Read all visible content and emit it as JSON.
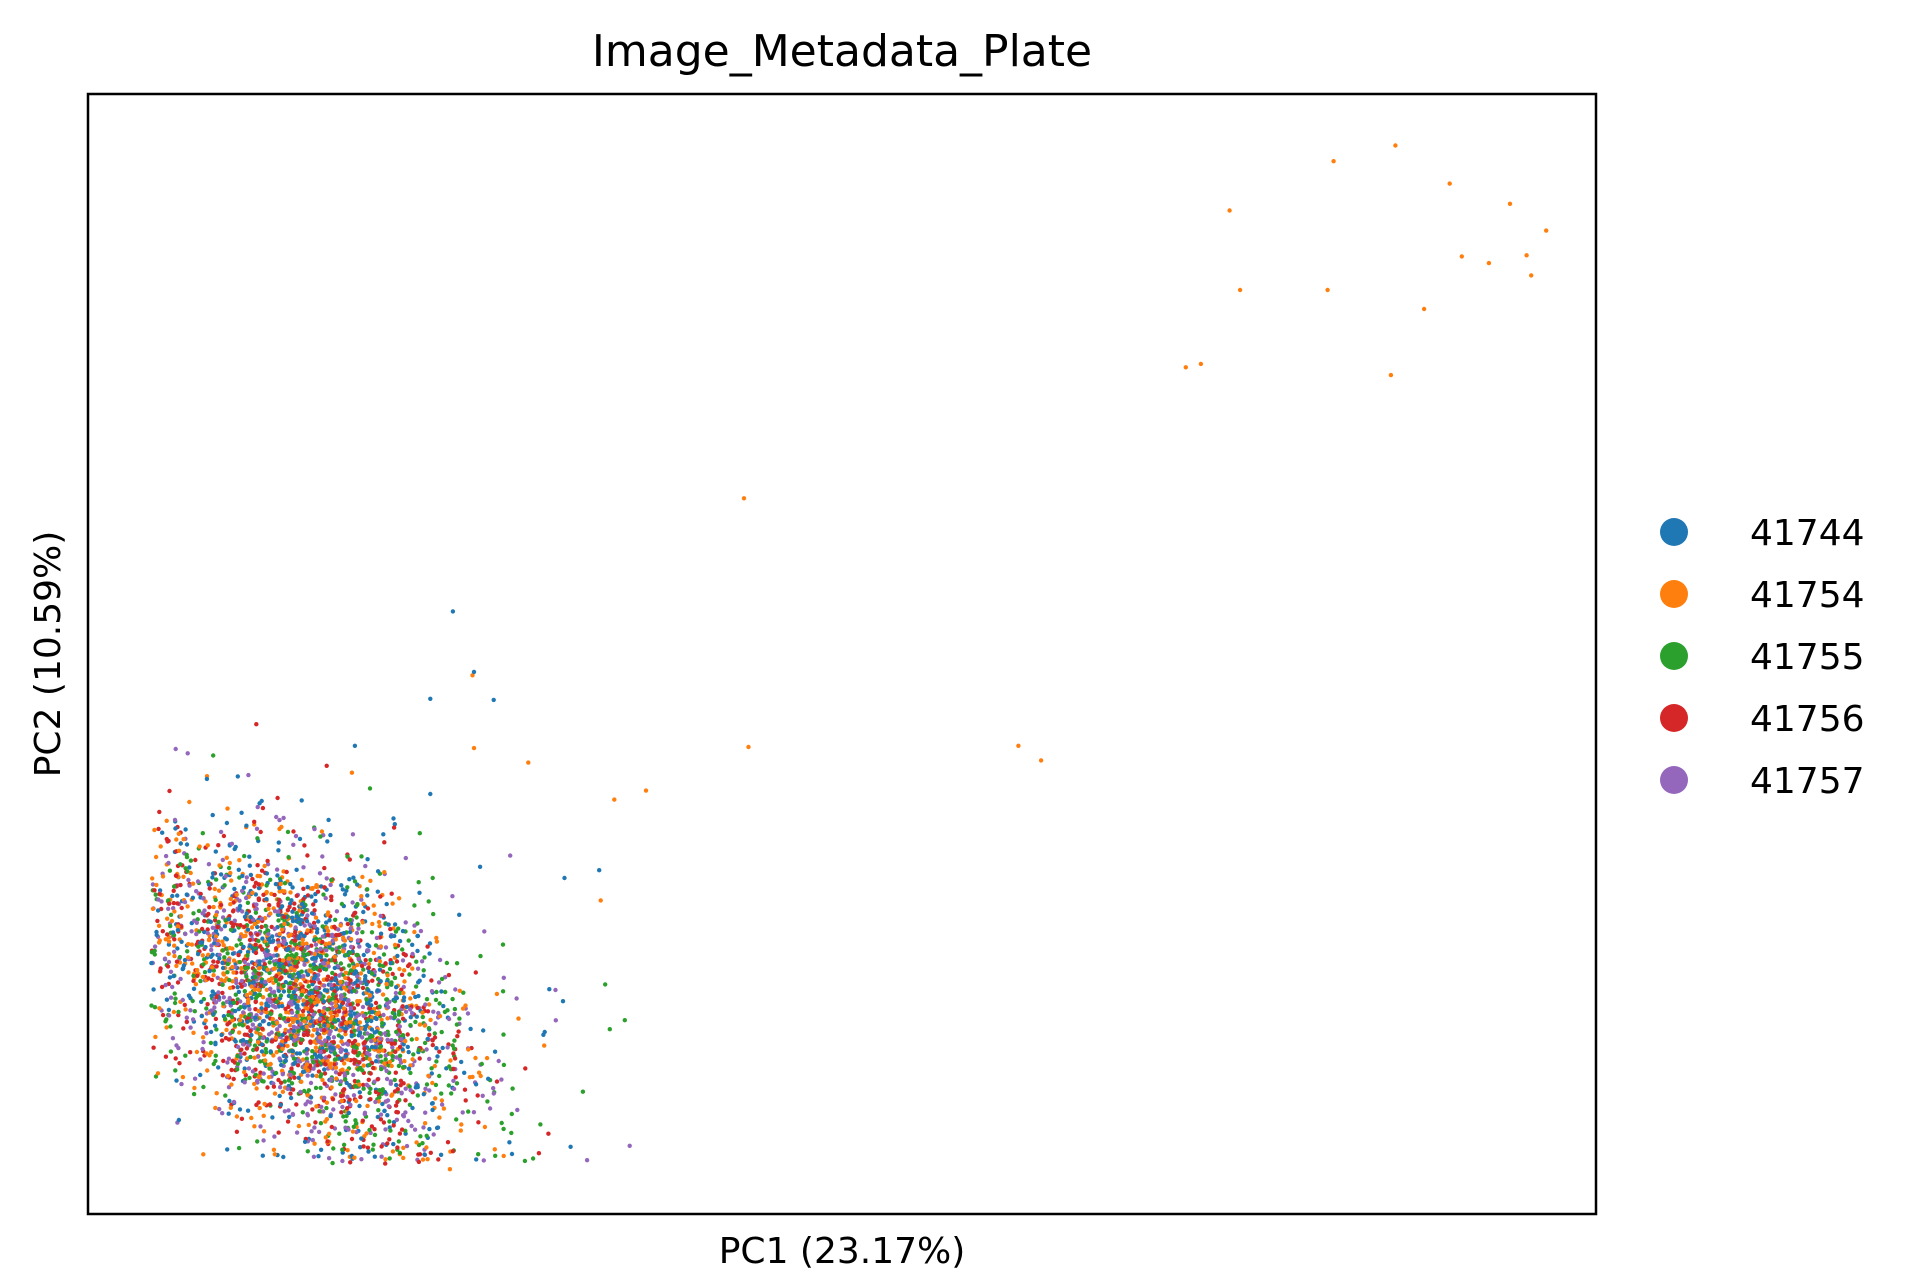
{
  "chart_data": {
    "type": "scatter",
    "title": "Image_Metadata_Plate",
    "xlabel": "PC1 (23.17%)",
    "ylabel": "PC2 (10.59%)",
    "xlim": [
      0,
      100
    ],
    "ylim": [
      0,
      100
    ],
    "grid": false,
    "ticks": false,
    "legend_placement": "right",
    "series": [
      {
        "name": "41744",
        "color": "#1f77b4",
        "cluster": {
          "count": 700,
          "center": [
            14.5,
            20.0
          ],
          "spread": [
            5.0,
            6.0
          ]
        },
        "points": [
          [
            24.2,
            53.8
          ],
          [
            25.6,
            48.4
          ],
          [
            26.9,
            45.9
          ],
          [
            22.7,
            46.0
          ],
          [
            17.7,
            41.8
          ],
          [
            22.7,
            37.5
          ],
          [
            33.9,
            30.7
          ],
          [
            31.6,
            30.0
          ],
          [
            26.0,
            31.0
          ],
          [
            31.5,
            19.0
          ],
          [
            30.2,
            16.0
          ],
          [
            32.0,
            6.0
          ]
        ]
      },
      {
        "name": "41754",
        "color": "#ff7f0e",
        "cluster": {
          "count": 700,
          "center": [
            14.0,
            19.5
          ],
          "spread": [
            5.0,
            6.0
          ]
        },
        "points": [
          [
            94.3,
            90.2
          ],
          [
            90.3,
            92.0
          ],
          [
            86.7,
            95.4
          ],
          [
            82.6,
            94.0
          ],
          [
            75.7,
            89.6
          ],
          [
            91.1,
            85.5
          ],
          [
            92.9,
            84.9
          ],
          [
            95.7,
            83.8
          ],
          [
            96.7,
            87.8
          ],
          [
            95.4,
            85.6
          ],
          [
            88.6,
            80.8
          ],
          [
            82.2,
            82.5
          ],
          [
            76.4,
            82.5
          ],
          [
            73.8,
            75.9
          ],
          [
            72.8,
            75.6
          ],
          [
            86.4,
            74.9
          ],
          [
            43.5,
            63.9
          ],
          [
            43.8,
            41.7
          ],
          [
            61.7,
            41.8
          ],
          [
            63.2,
            40.5
          ],
          [
            25.5,
            48.1
          ],
          [
            37.0,
            37.8
          ],
          [
            29.2,
            40.3
          ],
          [
            34.9,
            37.0
          ],
          [
            17.5,
            39.4
          ],
          [
            25.6,
            41.6
          ],
          [
            34.0,
            28.0
          ],
          [
            24.0,
            4.0
          ],
          [
            9.0,
            24.0
          ]
        ]
      },
      {
        "name": "41755",
        "color": "#2ca02c",
        "cluster": {
          "count": 700,
          "center": [
            15.0,
            18.5
          ],
          "spread": [
            5.0,
            6.0
          ]
        },
        "points": [
          [
            35.6,
            17.3
          ],
          [
            34.6,
            16.5
          ],
          [
            34.3,
            20.5
          ],
          [
            18.7,
            38.0
          ],
          [
            15.0,
            34.5
          ],
          [
            22.0,
            34.0
          ],
          [
            30.0,
            8.0
          ]
        ]
      },
      {
        "name": "41756",
        "color": "#d62728",
        "cluster": {
          "count": 700,
          "center": [
            14.0,
            19.5
          ],
          "spread": [
            5.0,
            6.0
          ]
        },
        "points": [
          [
            20.3,
            34.5
          ],
          [
            29.0,
            13.0
          ],
          [
            9.5,
            26.0
          ]
        ]
      },
      {
        "name": "41757",
        "color": "#9467bd",
        "cluster": {
          "count": 700,
          "center": [
            14.5,
            19.0
          ],
          "spread": [
            5.0,
            6.0
          ]
        },
        "points": [
          [
            33.1,
            4.8
          ],
          [
            6.2,
            11.6
          ],
          [
            8.9,
            9.0
          ],
          [
            28.0,
            32.0
          ],
          [
            31.0,
            20.0
          ]
        ]
      }
    ]
  }
}
